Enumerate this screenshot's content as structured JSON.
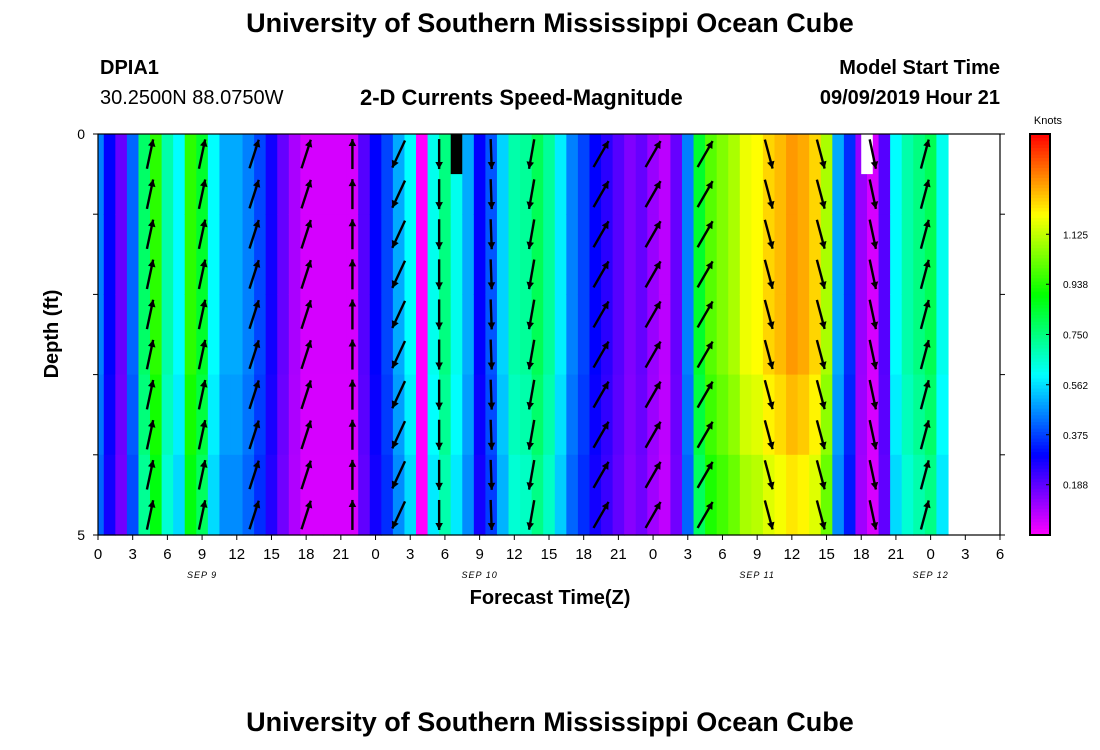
{
  "page": {
    "title": "University of Southern Mississippi Ocean Cube",
    "footer_title": "University of Southern Mississippi Ocean Cube",
    "station_id": "DPIA1",
    "station_coords": "30.2500N 88.0750W",
    "subtitle": "2-D Currents Speed-Magnitude",
    "model_start_label": "Model Start Time",
    "model_start_value": "09/09/2019 Hour 21"
  },
  "chart_data": {
    "type": "heatmap",
    "title": "2-D Currents Speed-Magnitude",
    "xlabel": "Forecast Time(Z)",
    "ylabel": "Depth (ft)",
    "x_tick_labels": [
      "0",
      "3",
      "6",
      "9",
      "12",
      "15",
      "18",
      "21",
      "0",
      "3",
      "6",
      "9",
      "12",
      "15",
      "18",
      "21",
      "0",
      "3",
      "6",
      "9",
      "12",
      "15",
      "18",
      "21",
      "0",
      "3",
      "6"
    ],
    "date_labels": [
      {
        "label": "SEP 9",
        "hour": 9
      },
      {
        "label": "SEP 10",
        "hour": 33
      },
      {
        "label": "SEP 11",
        "hour": 57
      },
      {
        "label": "SEP 12",
        "hour": 72
      }
    ],
    "x_range_hours": [
      0,
      78
    ],
    "depth_range_ft": [
      0,
      5
    ],
    "y_tick_labels": [
      "0",
      "5"
    ],
    "colorbar": {
      "label": "Knots",
      "range": [
        0,
        1.5
      ],
      "ticks": [
        "1.125",
        "0.938",
        "0.750",
        "0.562",
        "0.375",
        "0.188"
      ],
      "tick_values": [
        1.125,
        0.938,
        0.75,
        0.562,
        0.375,
        0.188
      ]
    },
    "speed_by_hour": [
      0.45,
      0.3,
      0.18,
      0.42,
      0.78,
      0.95,
      0.7,
      0.6,
      0.95,
      0.85,
      0.6,
      0.5,
      0.5,
      0.45,
      0.38,
      0.28,
      0.18,
      0.1,
      0.05,
      0.05,
      0.05,
      0.05,
      0.05,
      0.2,
      0.3,
      0.38,
      0.5,
      0.6,
      0.0,
      0.62,
      0.75,
      0.62,
      0.5,
      0.3,
      0.4,
      0.55,
      0.7,
      0.72,
      0.8,
      0.72,
      0.58,
      0.45,
      0.38,
      0.3,
      0.25,
      0.2,
      0.15,
      0.18,
      0.12,
      0.08,
      0.18,
      0.45,
      0.85,
      1.0,
      1.05,
      1.1,
      1.18,
      1.2,
      1.25,
      1.28,
      1.32,
      1.3,
      1.25,
      1.1,
      0.5,
      0.35,
      0.12,
      0.05,
      0.2,
      0.6,
      0.7,
      0.75,
      0.8,
      0.62
    ],
    "depth_factor": [
      1.0,
      1.0,
      1.0,
      0.97,
      0.93
    ],
    "missing_cells": [
      {
        "hour": 31,
        "depth_from": 0,
        "depth_to": 0.5,
        "color": "#000000"
      },
      {
        "hour": 66.5,
        "depth_from": 0,
        "depth_to": 0.5,
        "color": "#ffffff"
      }
    ],
    "vectors": {
      "hours": [
        4.5,
        9.0,
        13.5,
        18.0,
        22.0,
        26.0,
        29.5,
        34.0,
        37.5,
        43.5,
        48.0,
        52.5,
        58.0,
        62.5,
        67.0,
        71.5
      ],
      "depths_ft": [
        0.25,
        0.75,
        1.25,
        1.75,
        2.25,
        2.75,
        3.25,
        3.75,
        4.25,
        4.75
      ],
      "direction_deg": [
        12,
        12,
        18,
        18,
        0,
        205,
        180,
        178,
        190,
        30,
        30,
        30,
        165,
        165,
        168,
        15
      ]
    }
  }
}
